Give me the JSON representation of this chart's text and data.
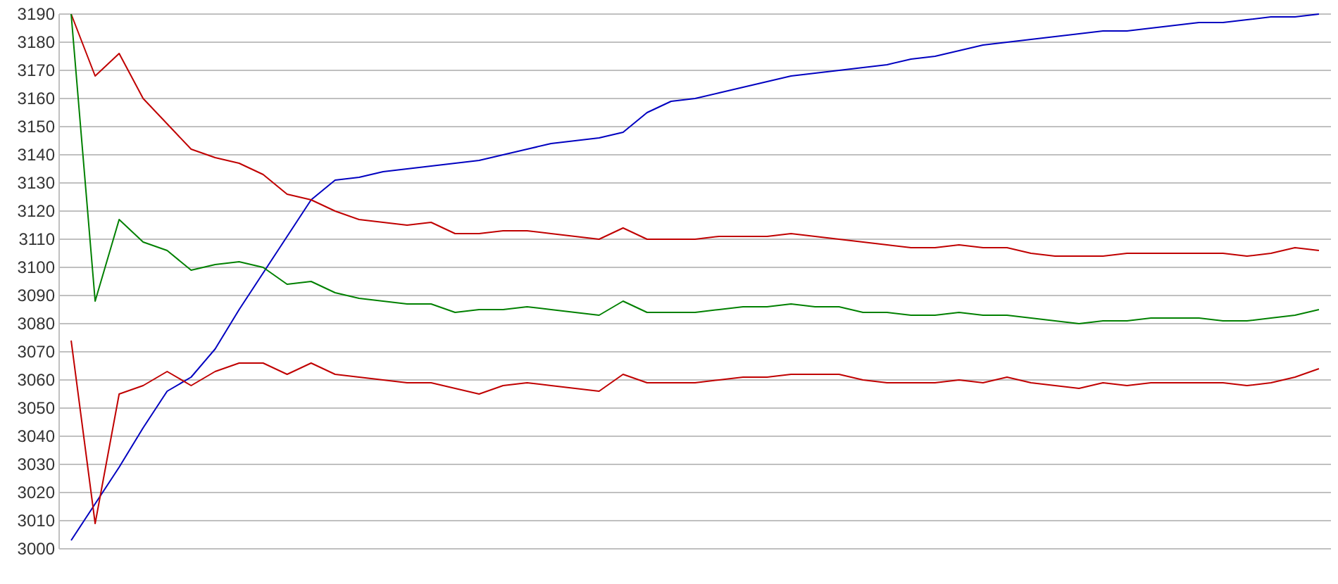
{
  "chart_data": {
    "type": "line",
    "categories": [
      null,
      null,
      null,
      null,
      null,
      null,
      null,
      null,
      null,
      null,
      null,
      null,
      null,
      null,
      null,
      null,
      null,
      null,
      null,
      null,
      null,
      null,
      null,
      null,
      null,
      null,
      null,
      null,
      null,
      null,
      null,
      null,
      null,
      null,
      null,
      null,
      null,
      null,
      null,
      null,
      null,
      null,
      null,
      null,
      null,
      null,
      null,
      null,
      null,
      null,
      null,
      null,
      null
    ],
    "series": [
      {
        "color": "#0000c0",
        "values": [
          3003,
          3016,
          3029,
          3043,
          3056,
          3061,
          3071,
          3085,
          3098,
          3111,
          3124,
          3131,
          3132,
          3134,
          3135,
          3136,
          3137,
          3138,
          3140,
          3142,
          3144,
          3145,
          3146,
          3148,
          3155,
          3159,
          3160,
          3162,
          3164,
          3166,
          3168,
          3169,
          3170,
          3171,
          3172,
          3174,
          3175,
          3177,
          3179,
          3180,
          3181,
          3182,
          3183,
          3184,
          3184,
          3185,
          3186,
          3187,
          3187,
          3188,
          3189,
          3189,
          3190
        ]
      },
      {
        "color": "#c00000",
        "values": [
          3190,
          3168,
          3176,
          3160,
          3151,
          3142,
          3139,
          3137,
          3133,
          3126,
          3124,
          3120,
          3117,
          3116,
          3115,
          3116,
          3112,
          3112,
          3113,
          3113,
          3112,
          3111,
          3110,
          3114,
          3110,
          3110,
          3110,
          3111,
          3111,
          3111,
          3112,
          3111,
          3110,
          3109,
          3108,
          3107,
          3107,
          3108,
          3107,
          3107,
          3105,
          3104,
          3104,
          3104,
          3105,
          3105,
          3105,
          3105,
          3105,
          3104,
          3105,
          3107,
          3106
        ]
      },
      {
        "color": "#008000",
        "values": [
          3190,
          3088,
          3117,
          3109,
          3106,
          3099,
          3101,
          3102,
          3100,
          3094,
          3095,
          3091,
          3089,
          3088,
          3087,
          3087,
          3084,
          3085,
          3085,
          3086,
          3085,
          3084,
          3083,
          3088,
          3084,
          3084,
          3084,
          3085,
          3086,
          3086,
          3087,
          3086,
          3086,
          3084,
          3084,
          3083,
          3083,
          3084,
          3083,
          3083,
          3082,
          3081,
          3080,
          3081,
          3081,
          3082,
          3082,
          3082,
          3081,
          3081,
          3082,
          3083,
          3085
        ]
      },
      {
        "color": "#c00000",
        "values": [
          3074,
          3009,
          3055,
          3058,
          3063,
          3058,
          3063,
          3066,
          3066,
          3062,
          3066,
          3062,
          3061,
          3060,
          3059,
          3059,
          3057,
          3055,
          3058,
          3059,
          3058,
          3057,
          3056,
          3062,
          3059,
          3059,
          3059,
          3060,
          3061,
          3061,
          3062,
          3062,
          3062,
          3060,
          3059,
          3059,
          3059,
          3060,
          3059,
          3061,
          3059,
          3058,
          3057,
          3059,
          3058,
          3059,
          3059,
          3059,
          3059,
          3058,
          3059,
          3061,
          3064
        ]
      }
    ],
    "ylim": [
      3000,
      3190
    ],
    "yticks": [
      3000,
      3010,
      3020,
      3030,
      3040,
      3050,
      3060,
      3070,
      3080,
      3090,
      3100,
      3110,
      3120,
      3130,
      3140,
      3150,
      3160,
      3170,
      3180,
      3190
    ],
    "grid": "y",
    "tick_labels": "y",
    "marker": "none",
    "line_style": "solid"
  }
}
